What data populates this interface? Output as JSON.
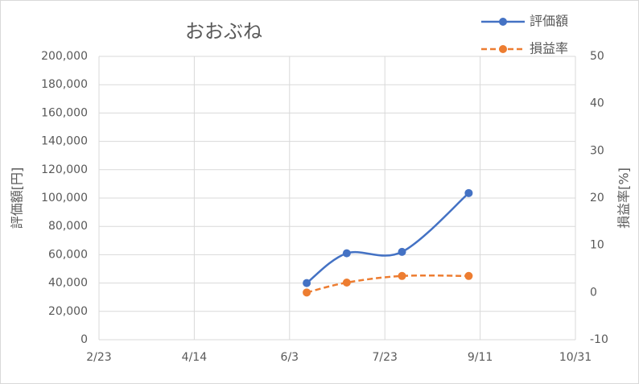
{
  "chart_data": {
    "type": "line",
    "title": "おおぶね",
    "y_label": "評価額[円]",
    "y2_label": "損益率[%]",
    "x": [
      "6/12",
      "7/3",
      "8/1",
      "9/5"
    ],
    "xlim": [
      "2/23",
      "10/31"
    ],
    "xticks": [
      "2/23",
      "4/14",
      "6/3",
      "7/23",
      "9/11",
      "10/31"
    ],
    "ylim": [
      0,
      200000
    ],
    "yticks": [
      {
        "value": 0,
        "label": "0"
      },
      {
        "value": 20000,
        "label": "20,000"
      },
      {
        "value": 40000,
        "label": "40,000"
      },
      {
        "value": 60000,
        "label": "60,000"
      },
      {
        "value": 80000,
        "label": "80,000"
      },
      {
        "value": 100000,
        "label": "100,000"
      },
      {
        "value": 120000,
        "label": "120,000"
      },
      {
        "value": 140000,
        "label": "140,000"
      },
      {
        "value": 160000,
        "label": "160,000"
      },
      {
        "value": 180000,
        "label": "180,000"
      },
      {
        "value": 200000,
        "label": "200,000"
      }
    ],
    "y2lim": [
      -10,
      50
    ],
    "y2ticks": [
      -10,
      0,
      10,
      20,
      30,
      40,
      50
    ],
    "grid": true,
    "smooth": true,
    "legend": "top-right",
    "series": [
      {
        "name": "評価額",
        "color": "#4472c4",
        "dash": false,
        "values": [
          40000,
          61000,
          62000,
          103500
        ]
      },
      {
        "name": "損益率",
        "color": "#ed7d31",
        "dash": true,
        "axis": "y2",
        "values": [
          0,
          2.1,
          3.5,
          3.5
        ]
      }
    ]
  }
}
